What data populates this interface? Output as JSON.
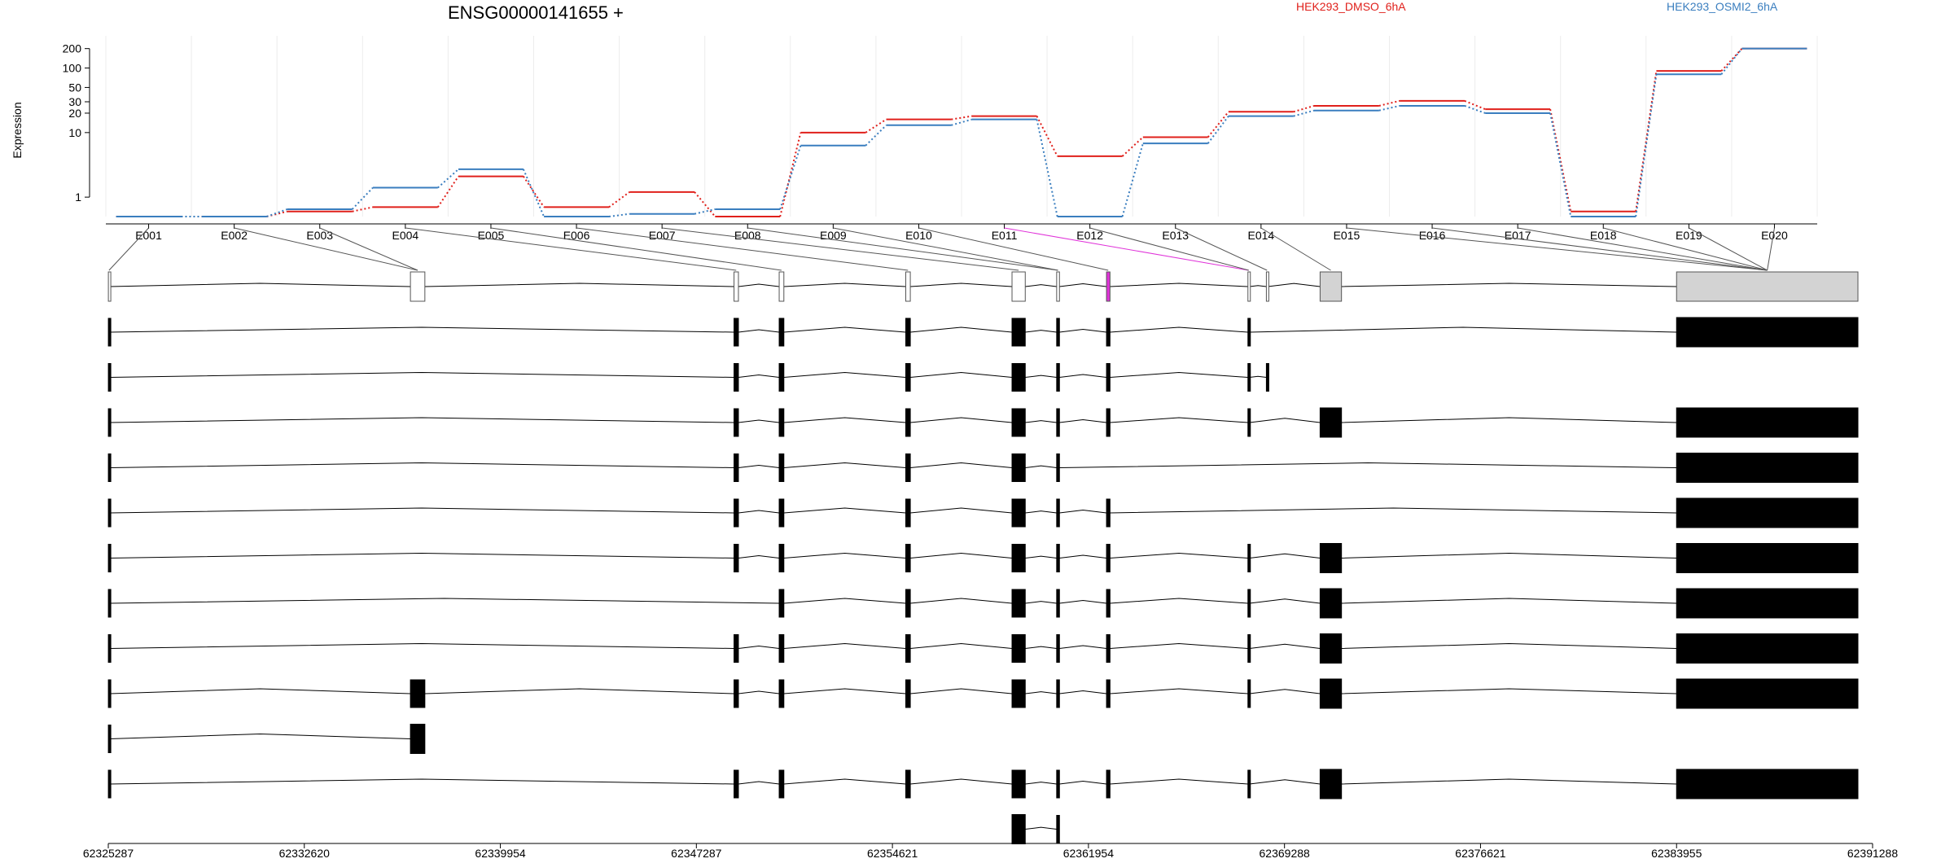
{
  "chart_data": {
    "type": "line",
    "title": "ENSG00000141655 +",
    "ylabel": "Expression",
    "yscale": "log",
    "ylim": [
      0.5,
      250
    ],
    "yticks": [
      "1",
      "10",
      "20",
      "30",
      "50",
      "100",
      "200"
    ],
    "grid": "vertical",
    "legend_position": "top",
    "categories": [
      "E001",
      "E002",
      "E003",
      "E004",
      "E005",
      "E006",
      "E007",
      "E008",
      "E009",
      "E010",
      "E011",
      "E012",
      "E013",
      "E014",
      "E015",
      "E016",
      "E017",
      "E018",
      "E019",
      "E020"
    ],
    "series": [
      {
        "name": "HEK293_DMSO_6hA",
        "color": "#e0201b",
        "values": [
          0.5,
          0.5,
          0.6,
          0.7,
          2.1,
          0.7,
          1.2,
          0.5,
          10,
          16,
          18,
          4.3,
          8.5,
          21,
          26,
          31,
          23,
          0.6,
          90,
          200
        ]
      },
      {
        "name": "HEK293_OSMI2_6hA",
        "color": "#3a7ebf",
        "values": [
          0.5,
          0.5,
          0.65,
          1.4,
          2.7,
          0.5,
          0.55,
          0.65,
          6.3,
          13,
          16,
          0.5,
          6.8,
          18,
          22,
          26,
          20,
          0.5,
          80,
          200
        ]
      }
    ],
    "genomic_axis": {
      "tick_labels": [
        "62325287",
        "62332620",
        "62339954",
        "62347287",
        "62354621",
        "62361954",
        "62369288",
        "62376621",
        "62383955",
        "62391288"
      ]
    },
    "highlighted_exon": "E011",
    "gene_model_colors": {
      "exon_bins": "#d3d3d3",
      "highlight": "#e033d9",
      "transcripts": "#000000"
    },
    "transcript_count": 12
  }
}
